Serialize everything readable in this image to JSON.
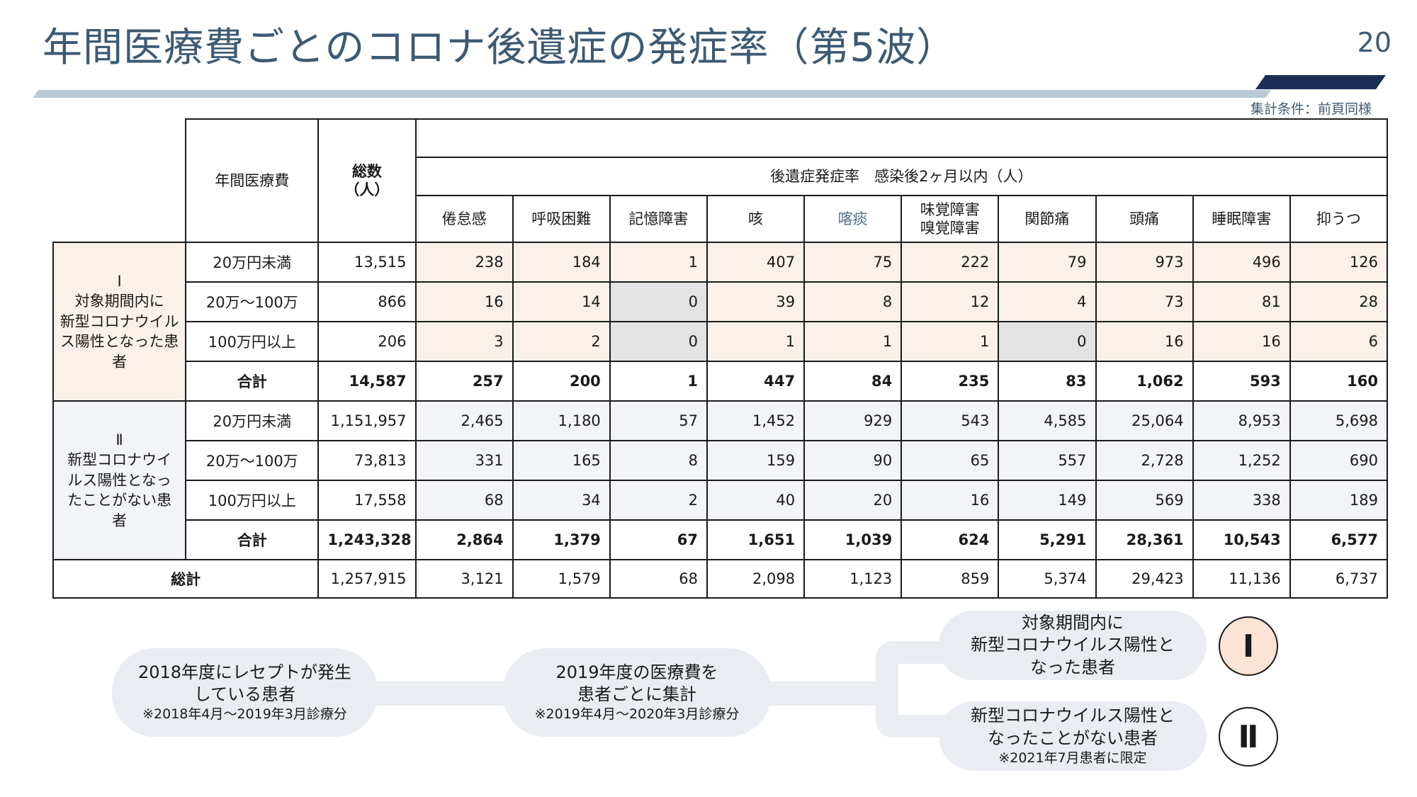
{
  "header": {
    "title": "年間医療費ごとのコロナ後遺症の発症率（第5波）",
    "page_number": "20",
    "condition": "集計条件：前頁同様"
  },
  "table": {
    "col_cost": "年間医療費",
    "col_total": "総数\n（人）",
    "group_header": "後遺症発症率　感染後2ヶ月以内（人）",
    "symptoms": [
      "倦怠感",
      "呼吸困難",
      "記憶障害",
      "咳",
      "喀痰",
      "味覚障害\n嗅覚障害",
      "関節痛",
      "頭痛",
      "睡眠障害",
      "抑うつ"
    ],
    "section1": {
      "label": "Ⅰ\n対象期間内に\n新型コロナウイル\nス陽性となった患\n者",
      "rows": [
        {
          "cost": "20万円未満",
          "total": "13,515",
          "values": [
            "238",
            "184",
            "1",
            "407",
            "75",
            "222",
            "79",
            "973",
            "496",
            "126"
          ]
        },
        {
          "cost": "20万～100万",
          "total": "866",
          "values": [
            "16",
            "14",
            "0",
            "39",
            "8",
            "12",
            "4",
            "73",
            "81",
            "28"
          ]
        },
        {
          "cost": "100万円以上",
          "total": "206",
          "values": [
            "3",
            "2",
            "0",
            "1",
            "1",
            "1",
            "0",
            "16",
            "16",
            "6"
          ]
        }
      ],
      "subtotal": {
        "cost": "合計",
        "total": "14,587",
        "values": [
          "257",
          "200",
          "1",
          "447",
          "84",
          "235",
          "83",
          "1,062",
          "593",
          "160"
        ]
      }
    },
    "section2": {
      "label": "Ⅱ\n新型コロナウイ\nルス陽性となっ\nたことがない患\n者",
      "rows": [
        {
          "cost": "20万円未満",
          "total": "1,151,957",
          "values": [
            "2,465",
            "1,180",
            "57",
            "1,452",
            "929",
            "543",
            "4,585",
            "25,064",
            "8,953",
            "5,698"
          ]
        },
        {
          "cost": "20万～100万",
          "total": "73,813",
          "values": [
            "331",
            "165",
            "8",
            "159",
            "90",
            "65",
            "557",
            "2,728",
            "1,252",
            "690"
          ]
        },
        {
          "cost": "100万円以上",
          "total": "17,558",
          "values": [
            "68",
            "34",
            "2",
            "40",
            "20",
            "16",
            "149",
            "569",
            "338",
            "189"
          ]
        }
      ],
      "subtotal": {
        "cost": "合計",
        "total": "1,243,328",
        "values": [
          "2,864",
          "1,379",
          "67",
          "1,651",
          "1,039",
          "624",
          "5,291",
          "28,361",
          "10,543",
          "6,577"
        ]
      }
    },
    "grand_total": {
      "label": "総計",
      "total": "1,257,915",
      "values": [
        "3,121",
        "1,579",
        "68",
        "2,098",
        "1,123",
        "859",
        "5,374",
        "29,423",
        "11,136",
        "6,737"
      ]
    }
  },
  "flow": {
    "step1": {
      "main": "2018年度にレセプトが発生\nしている患者",
      "note": "※2018年4月～2019年3月診療分"
    },
    "step2": {
      "main": "2019年度の医療費を\n患者ごとに集計",
      "note": "※2019年4月～2020年3月診療分"
    },
    "branch1": {
      "main": "対象期間内に\n新型コロナウイルス陽性と\nなった患者",
      "badge": "Ⅰ"
    },
    "branch2": {
      "main": "新型コロナウイルス陽性と\nなったことがない患者",
      "note": "※2021年7月患者に限定",
      "badge": "Ⅱ"
    }
  },
  "colors": {
    "title": "#3d5a73",
    "accent_dark": "#1b2f55",
    "section1_bg": "#fbf1ea",
    "section2_bg": "#f2f4f7",
    "zero_bg": "#e3e3e3",
    "badge1_bg": "#fbe3d6"
  }
}
